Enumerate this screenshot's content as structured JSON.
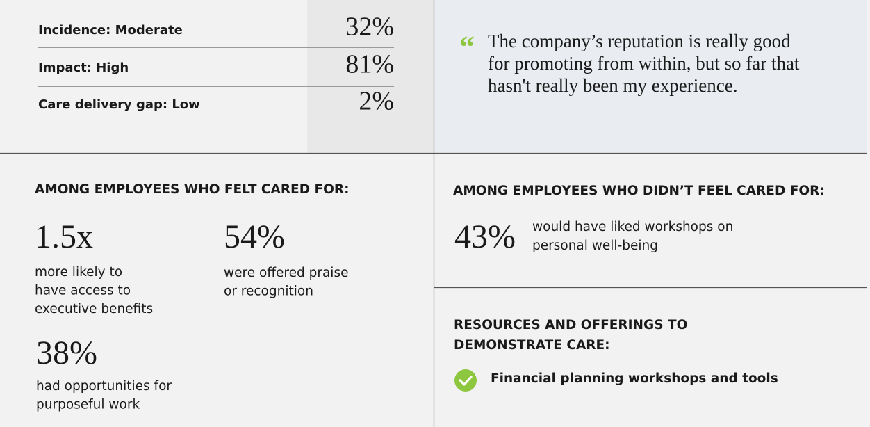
{
  "metrics": {
    "rows": [
      {
        "label": "Incidence: Moderate",
        "value": "32%"
      },
      {
        "label": "Impact: High",
        "value": "81%"
      },
      {
        "label": "Care delivery gap: Low",
        "value": "2%"
      }
    ]
  },
  "quote": {
    "mark": "“",
    "lines": [
      "The company’s reputation is really good",
      "for promoting from within, but so far that",
      "hasn't really been my experience."
    ]
  },
  "cared_for": {
    "heading": "AMONG EMPLOYEES WHO FELT CARED FOR:",
    "stats": [
      {
        "value": "1.5x",
        "lines": [
          "more likely to",
          "have access to",
          "executive benefits"
        ]
      },
      {
        "value": "54%",
        "lines": [
          "were offered praise",
          "or recognition"
        ]
      },
      {
        "value": "38%",
        "lines": [
          "had opportunities for",
          "purposeful work"
        ]
      }
    ]
  },
  "not_cared_for": {
    "heading": "AMONG EMPLOYEES WHO DIDN’T FEEL CARED FOR:",
    "stats": [
      {
        "value": "43%",
        "lines": [
          "would have liked workshops on",
          "personal well-being"
        ]
      }
    ]
  },
  "resources": {
    "heading_lines": [
      "RESOURCES AND OFFERINGS TO",
      "DEMONSTRATE CARE:"
    ],
    "items": [
      "Financial planning workshops and tools"
    ]
  }
}
